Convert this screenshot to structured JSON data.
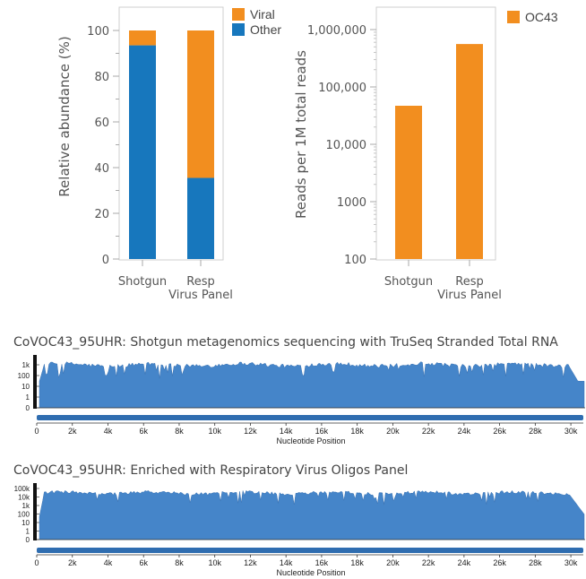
{
  "colors": {
    "viral": "#f28e1f",
    "other": "#1777bd",
    "coverage": "#4585c9",
    "coverage_dark": "#3a72b2"
  },
  "chart_data": [
    {
      "type": "bar",
      "stacked": true,
      "categories": [
        "Shotgun",
        "Resp\nVirus Panel"
      ],
      "category_lines": [
        [
          "Shotgun"
        ],
        [
          "Resp",
          "Virus Panel"
        ]
      ],
      "series": [
        {
          "name": "Other",
          "values": [
            93.5,
            35.5
          ]
        },
        {
          "name": "Viral",
          "values": [
            6.5,
            64.5
          ]
        }
      ],
      "ylabel": "Relative abundance (%)",
      "ylim": [
        0,
        100
      ],
      "yticks": [
        "0",
        "20",
        "40",
        "60",
        "80",
        "100"
      ],
      "legend": [
        "Viral",
        "Other"
      ],
      "legend_position": "right"
    },
    {
      "type": "bar",
      "log_scale": true,
      "categories": [
        "Shotgun",
        "Resp\nVirus Panel"
      ],
      "category_lines": [
        [
          "Shotgun"
        ],
        [
          "Resp",
          "Virus Panel"
        ]
      ],
      "series": [
        {
          "name": "OC43",
          "values": [
            47000,
            560000
          ]
        }
      ],
      "ylabel": "Reads per 1M total reads",
      "ylim": [
        100,
        1000000
      ],
      "yticks": [
        "100",
        "1000",
        "10,000",
        "100,000",
        "1,000,000"
      ],
      "legend": [
        "OC43"
      ],
      "legend_position": "top-right"
    },
    {
      "type": "area",
      "log_scale": true,
      "title": "CoVOC43_95UHR: Shotgun metagenomics sequencing with TruSeq Stranded Total RNA",
      "xlabel": "Nucleotide Position",
      "xlim": [
        0,
        30700
      ],
      "xticks": [
        "0",
        "2k",
        "4k",
        "6k",
        "8k",
        "10k",
        "12k",
        "14k",
        "16k",
        "18k",
        "20k",
        "22k",
        "24k",
        "26k",
        "28k",
        "30k"
      ],
      "yticks": [
        "0",
        "1",
        "10",
        "100",
        "1k"
      ],
      "typical_depth": 1000,
      "depth_range": [
        30,
        2000
      ]
    },
    {
      "type": "area",
      "log_scale": true,
      "title": "CoVOC43_95UHR: Enriched with Respiratory Virus Oligos Panel",
      "xlabel": "Nucleotide Position",
      "xlim": [
        0,
        30700
      ],
      "xticks": [
        "0",
        "2k",
        "4k",
        "6k",
        "8k",
        "10k",
        "12k",
        "14k",
        "16k",
        "18k",
        "20k",
        "22k",
        "24k",
        "26k",
        "28k",
        "30k"
      ],
      "yticks": [
        "0",
        "1",
        "10",
        "100",
        "1k",
        "10k",
        "100k"
      ],
      "typical_depth": 30000,
      "depth_range": [
        50,
        100000
      ]
    }
  ]
}
